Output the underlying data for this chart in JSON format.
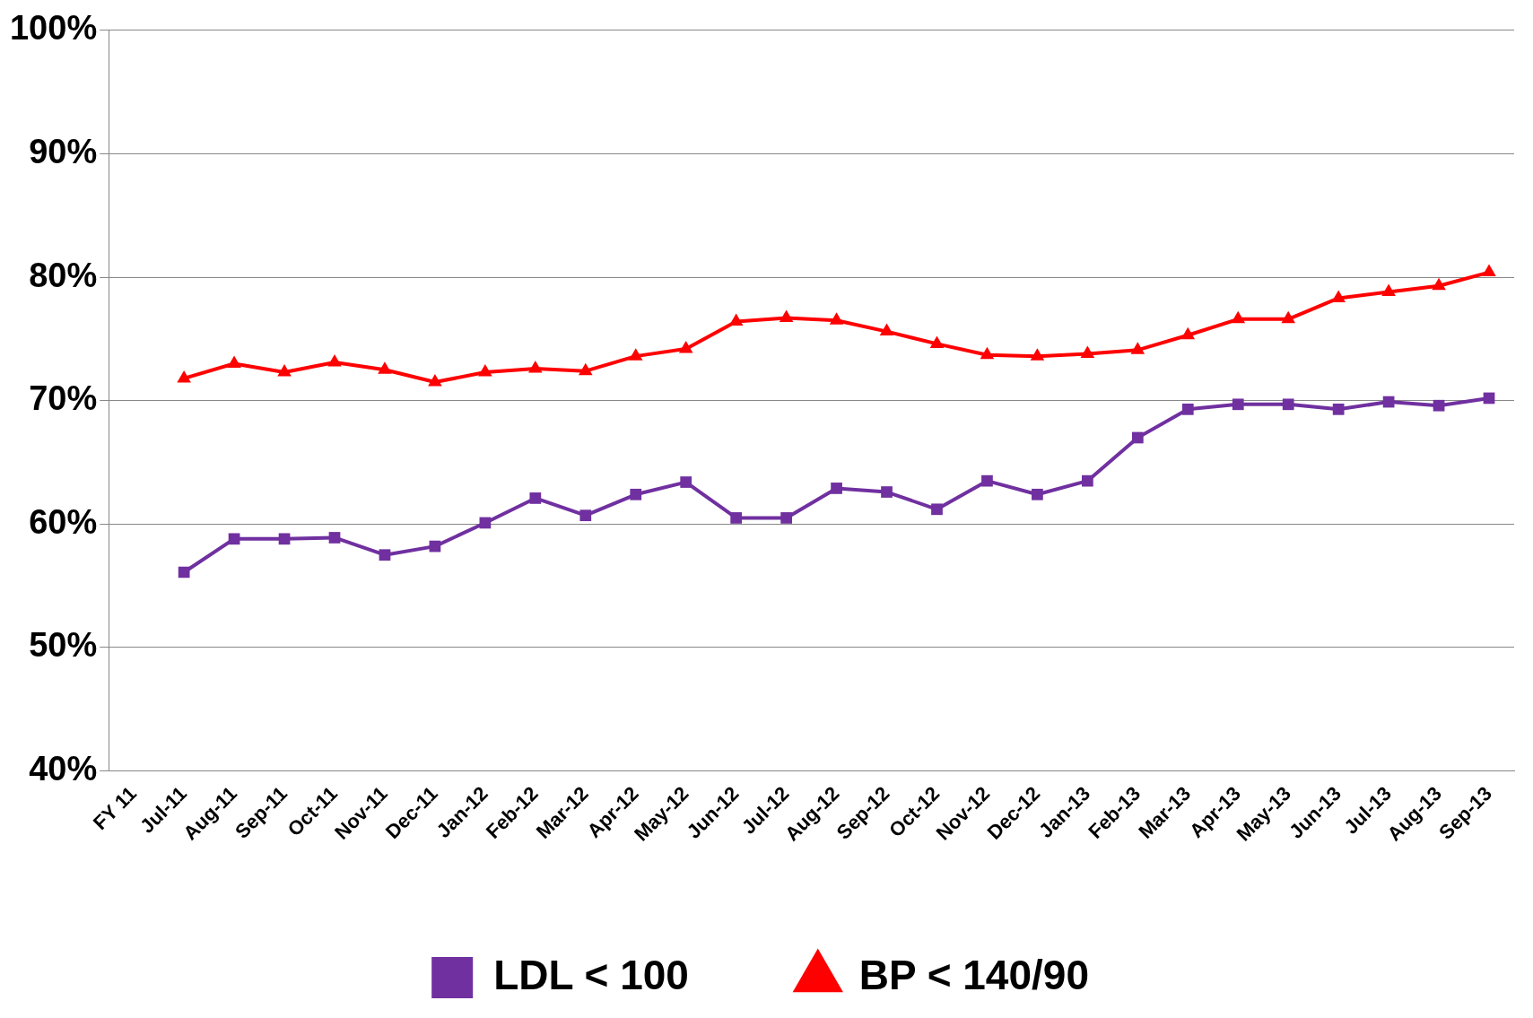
{
  "chart_data": {
    "type": "line",
    "categories": [
      "FY 11",
      "Jul-11",
      "Aug-11",
      "Sep-11",
      "Oct-11",
      "Nov-11",
      "Dec-11",
      "Jan-12",
      "Feb-12",
      "Mar-12",
      "Apr-12",
      "May-12",
      "Jun-12",
      "Jul-12",
      "Aug-12",
      "Sep-12",
      "Oct-12",
      "Nov-12",
      "Dec-12",
      "Jan-13",
      "Feb-13",
      "Mar-13",
      "Apr-13",
      "May-13",
      "Jun-13",
      "Jul-13",
      "Aug-13",
      "Sep-13"
    ],
    "series": [
      {
        "name": "LDL < 100",
        "color": "#7030a0",
        "marker": "square",
        "values": [
          null,
          56.1,
          58.8,
          58.8,
          58.9,
          57.5,
          58.2,
          60.1,
          62.1,
          60.7,
          62.4,
          63.4,
          60.5,
          60.5,
          62.9,
          62.6,
          61.2,
          63.5,
          62.4,
          63.5,
          67.0,
          69.3,
          69.7,
          69.7,
          69.3,
          69.9,
          69.6,
          70.2
        ]
      },
      {
        "name": "BP < 140/90",
        "color": "#ff0000",
        "marker": "triangle",
        "values": [
          null,
          71.8,
          73.0,
          72.3,
          73.1,
          72.5,
          71.5,
          72.3,
          72.6,
          72.4,
          73.6,
          74.2,
          76.4,
          76.7,
          76.5,
          75.6,
          74.6,
          73.7,
          73.6,
          73.8,
          74.1,
          75.3,
          76.6,
          76.6,
          78.3,
          78.8,
          79.3,
          80.4
        ]
      }
    ],
    "ylim": [
      40,
      100
    ],
    "yticks": [
      {
        "value": 40,
        "label": "40%"
      },
      {
        "value": 50,
        "label": "50%"
      },
      {
        "value": 60,
        "label": "60%"
      },
      {
        "value": 70,
        "label": "70%"
      },
      {
        "value": 80,
        "label": "80%"
      },
      {
        "value": 90,
        "label": "90%"
      },
      {
        "value": 100,
        "label": "100%"
      }
    ],
    "grid": "y",
    "legend": "bottom",
    "line_style": "solid"
  }
}
